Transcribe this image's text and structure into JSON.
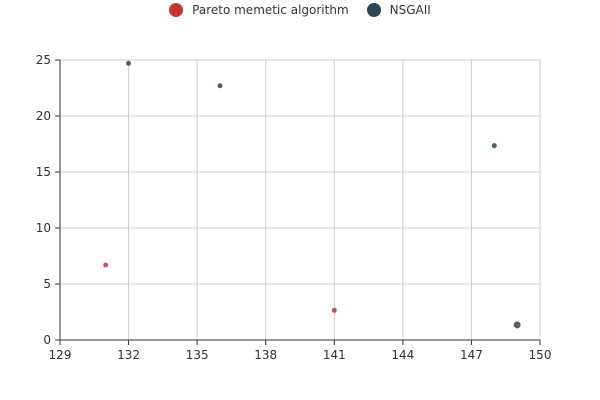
{
  "chart_data": {
    "type": "scatter",
    "title": "",
    "xlabel": "",
    "ylabel": "",
    "xlim": [
      129,
      150
    ],
    "ylim": [
      0,
      25
    ],
    "xticks": [
      129,
      132,
      135,
      138,
      141,
      144,
      147,
      150
    ],
    "yticks": [
      0,
      5,
      10,
      15,
      20,
      25
    ],
    "grid": true,
    "legend_position": "top-center",
    "series": [
      {
        "name": "Pareto memetic algorithm",
        "color": "#c23531",
        "points": [
          {
            "x": 131,
            "y": 6.7
          },
          {
            "x": 141,
            "y": 2.65
          }
        ]
      },
      {
        "name": "NSGAII",
        "color": "#2f4554",
        "points": [
          {
            "x": 132,
            "y": 24.7
          },
          {
            "x": 136,
            "y": 22.7
          },
          {
            "x": 148,
            "y": 17.35
          },
          {
            "x": 149,
            "y": 1.35
          }
        ]
      }
    ]
  }
}
